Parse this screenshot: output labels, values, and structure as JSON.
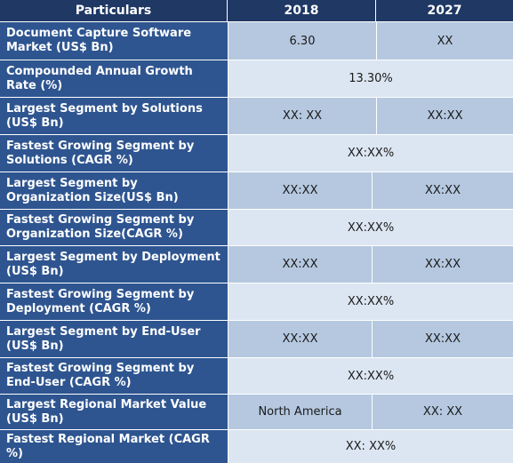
{
  "header": {
    "particulars": "Particulars",
    "y2018": "2018",
    "y2027": "2027"
  },
  "rows": [
    {
      "label": "Document Capture Software Market (US$ Bn)",
      "v2018": "6.30",
      "v2027": "XX"
    },
    {
      "label": "Compounded Annual Growth Rate (%)",
      "merged": "13.30%"
    },
    {
      "label": "Largest Segment by Solutions (US$ Bn)",
      "v2018": "XX: XX",
      "v2027": "XX:XX"
    },
    {
      "label": "Fastest Growing Segment by Solutions (CAGR %)",
      "merged": "XX:XX%"
    },
    {
      "label": "Largest Segment by Organization Size(US$ Bn)",
      "v2018": "XX:XX",
      "v2027": "XX:XX"
    },
    {
      "label": "Fastest Growing Segment by Organization Size(CAGR %)",
      "merged": "XX:XX%"
    },
    {
      "label": "Largest Segment by Deployment (US$ Bn)",
      "v2018": "XX:XX",
      "v2027": "XX:XX"
    },
    {
      "label": "Fastest Growing Segment by Deployment (CAGR %)",
      "merged": "XX:XX%"
    },
    {
      "label": "Largest Segment by End-User (US$ Bn)",
      "v2018": "XX:XX",
      "v2027": "XX:XX"
    },
    {
      "label": "Fastest Growing Segment by End-User (CAGR %)",
      "merged": "XX:XX%"
    },
    {
      "label": "Largest Regional Market Value (US$ Bn)",
      "v2018": "North America",
      "v2027": "XX: XX"
    },
    {
      "label": "Fastest Regional Market (CAGR %)",
      "merged": "XX: XX%"
    }
  ]
}
